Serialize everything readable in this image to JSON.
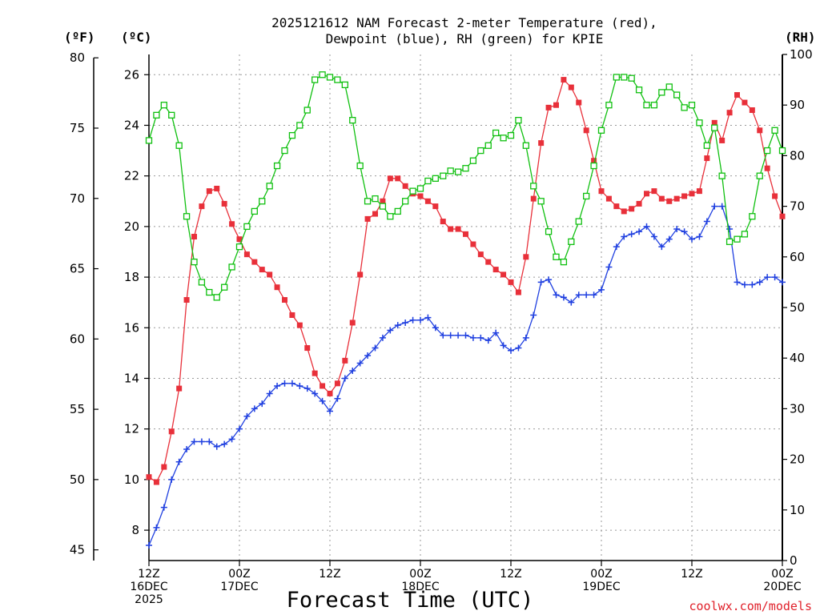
{
  "title_line1": "2025121612 NAM Forecast 2-meter Temperature (red),",
  "title_line2": "Dewpoint (blue), RH (green) for KPIE",
  "unit_f": "(ºF)",
  "unit_c": "(ºC)",
  "unit_rh": "(RH)",
  "credit": "coolwx.com/models",
  "colors": {
    "temperature": "#e8303a",
    "dewpoint": "#2040e0",
    "rh": "#10c010",
    "grid": "#999999"
  },
  "chart_data": {
    "type": "line",
    "title": "2025121612 NAM Forecast 2-meter Temperature (red), Dewpoint (blue), RH (green) for KPIE",
    "xlabel": "Forecast Time (UTC)",
    "x_unit": "hours since 2025-12-16 12Z",
    "xlim": [
      0,
      84
    ],
    "x_ticks": [
      {
        "x": 0,
        "lines": [
          "12Z",
          "16DEC",
          "2025"
        ]
      },
      {
        "x": 12,
        "lines": [
          "00Z",
          "17DEC"
        ]
      },
      {
        "x": 24,
        "lines": [
          "12Z"
        ]
      },
      {
        "x": 36,
        "lines": [
          "00Z",
          "18DEC"
        ]
      },
      {
        "x": 48,
        "lines": [
          "12Z"
        ]
      },
      {
        "x": 60,
        "lines": [
          "00Z",
          "19DEC"
        ]
      },
      {
        "x": 72,
        "lines": [
          "12Z"
        ]
      },
      {
        "x": 84,
        "lines": [
          "00Z",
          "20DEC"
        ]
      }
    ],
    "y_left_c": {
      "label": "(ºC)",
      "lim": [
        6.8,
        26.8
      ],
      "ticks": [
        8,
        10,
        12,
        14,
        16,
        18,
        20,
        22,
        24,
        26
      ]
    },
    "y_left_f": {
      "label": "(ºF)",
      "ticks": [
        45,
        50,
        55,
        60,
        65,
        70,
        75,
        80
      ]
    },
    "y_right": {
      "label": "(RH)",
      "lim": [
        0,
        100
      ],
      "ticks": [
        0,
        10,
        20,
        30,
        40,
        50,
        60,
        70,
        80,
        90,
        100
      ]
    },
    "grid": true,
    "x": [
      0,
      1,
      2,
      3,
      4,
      5,
      6,
      7,
      8,
      9,
      10,
      11,
      12,
      13,
      14,
      15,
      16,
      17,
      18,
      19,
      20,
      21,
      22,
      23,
      24,
      25,
      26,
      27,
      28,
      29,
      30,
      31,
      32,
      33,
      34,
      35,
      36,
      37,
      38,
      39,
      40,
      41,
      42,
      43,
      44,
      45,
      46,
      47,
      48,
      49,
      50,
      51,
      52,
      53,
      54,
      55,
      56,
      57,
      58,
      59,
      60,
      61,
      62,
      63,
      64,
      65,
      66,
      67,
      68,
      69,
      70,
      71,
      72,
      73,
      74,
      75,
      76,
      77,
      78,
      79,
      80,
      81,
      82,
      83,
      84
    ],
    "series": [
      {
        "name": "Temperature",
        "axis": "celsius",
        "color": "#e8303a",
        "marker": "filled-square",
        "values": [
          10.1,
          9.9,
          10.5,
          11.9,
          13.6,
          17.1,
          19.6,
          20.8,
          21.4,
          21.5,
          20.9,
          20.1,
          19.5,
          18.9,
          18.6,
          18.3,
          18.1,
          17.6,
          17.1,
          16.5,
          16.1,
          15.2,
          14.2,
          13.7,
          13.4,
          13.8,
          14.7,
          16.2,
          18.1,
          20.3,
          20.5,
          21.0,
          21.9,
          21.9,
          21.6,
          21.3,
          21.2,
          21.0,
          20.8,
          20.2,
          19.9,
          19.9,
          19.7,
          19.3,
          18.9,
          18.6,
          18.3,
          18.1,
          17.8,
          17.4,
          18.8,
          21.1,
          23.3,
          24.7,
          24.8,
          25.8,
          25.5,
          24.9,
          23.8,
          22.6,
          21.4,
          21.1,
          20.8,
          20.6,
          20.7,
          20.9,
          21.3,
          21.4,
          21.1,
          21.0,
          21.1,
          21.2,
          21.3,
          21.4,
          22.7,
          24.1,
          23.4,
          24.5,
          25.2,
          24.9,
          24.6,
          23.8,
          22.3,
          21.2,
          20.4
        ]
      },
      {
        "name": "Dewpoint",
        "axis": "celsius",
        "color": "#2040e0",
        "marker": "plus",
        "values": [
          7.4,
          8.1,
          8.9,
          10.0,
          10.7,
          11.2,
          11.5,
          11.5,
          11.5,
          11.3,
          11.4,
          11.6,
          12.0,
          12.5,
          12.8,
          13.0,
          13.4,
          13.7,
          13.8,
          13.8,
          13.7,
          13.6,
          13.4,
          13.1,
          12.7,
          13.2,
          14.0,
          14.3,
          14.6,
          14.9,
          15.2,
          15.6,
          15.9,
          16.1,
          16.2,
          16.3,
          16.3,
          16.4,
          16.0,
          15.7,
          15.7,
          15.7,
          15.7,
          15.6,
          15.6,
          15.5,
          15.8,
          15.3,
          15.1,
          15.2,
          15.6,
          16.5,
          17.8,
          17.9,
          17.3,
          17.2,
          17.0,
          17.3,
          17.3,
          17.3,
          17.5,
          18.4,
          19.2,
          19.6,
          19.7,
          19.8,
          20.0,
          19.6,
          19.2,
          19.5,
          19.9,
          19.8,
          19.5,
          19.6,
          20.2,
          20.8,
          20.8,
          19.9,
          17.8,
          17.7,
          17.7,
          17.8,
          18.0,
          18.0,
          17.8
        ]
      },
      {
        "name": "RH",
        "axis": "rh",
        "color": "#10c010",
        "marker": "open-square",
        "values": [
          83,
          88,
          90,
          88,
          82,
          68,
          59,
          55,
          53,
          52,
          54,
          58,
          62,
          66,
          69,
          71,
          74,
          78,
          81,
          84,
          86,
          89,
          95,
          96,
          95.5,
          95,
          94,
          87,
          78,
          71,
          71.5,
          70,
          68,
          69,
          71,
          73,
          73.5,
          75,
          75.5,
          76,
          77,
          76.8,
          77.5,
          79,
          81,
          82,
          84.5,
          83.5,
          84,
          87,
          82,
          74,
          71,
          65,
          60,
          59,
          63,
          67,
          72,
          78,
          85,
          90,
          95.5,
          95.5,
          95.3,
          93,
          90,
          90,
          92.5,
          93.6,
          92,
          89.5,
          90,
          86.5,
          82,
          85.5,
          76,
          63,
          63.5,
          64.5,
          68,
          76,
          81,
          85,
          81
        ]
      }
    ]
  }
}
